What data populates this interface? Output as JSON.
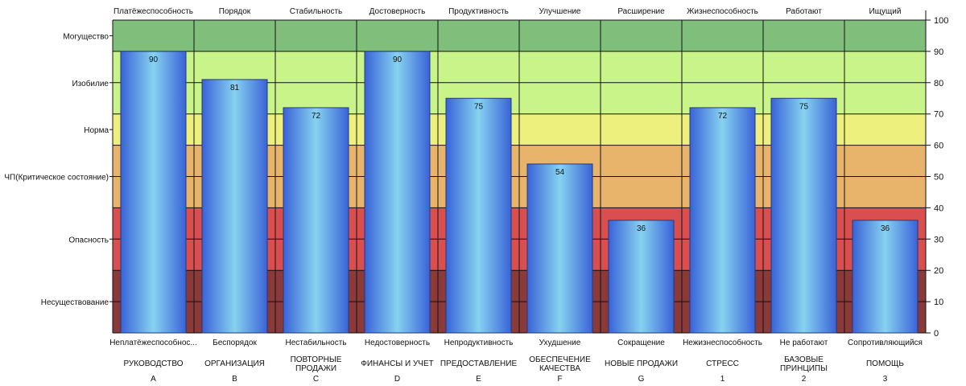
{
  "chart_data": {
    "type": "bar",
    "categories": [
      {
        "top": "Платёжеспособность",
        "bottom": "Неплатёжеспособнос...",
        "dept": "РУКОВОДСТВО",
        "code": "A"
      },
      {
        "top": "Порядок",
        "bottom": "Беспорядок",
        "dept": "ОРГАНИЗАЦИЯ",
        "code": "B"
      },
      {
        "top": "Стабильность",
        "bottom": "Нестабильность",
        "dept": "ПОВТОРНЫЕ ПРОДАЖИ",
        "code": "C"
      },
      {
        "top": "Достоверность",
        "bottom": "Недостоверность",
        "dept": "ФИНАНСЫ И УЧЕТ",
        "code": "D"
      },
      {
        "top": "Продуктивность",
        "bottom": "Непродуктивность",
        "dept": "ПРЕДОСТАВЛЕНИЕ",
        "code": "E"
      },
      {
        "top": "Улучшение",
        "bottom": "Ухудшение",
        "dept": "ОБЕСПЕЧЕНИЕ КАЧЕСТВА",
        "code": "F"
      },
      {
        "top": "Расширение",
        "bottom": "Сокращение",
        "dept": "НОВЫЕ ПРОДАЖИ",
        "code": "G"
      },
      {
        "top": "Жизнеспособность",
        "bottom": "Нежизнеспособность",
        "dept": "СТРЕСС",
        "code": "1"
      },
      {
        "top": "Работают",
        "bottom": "Не работают",
        "dept": "БАЗОВЫЕ ПРИНЦИПЫ",
        "code": "2"
      },
      {
        "top": "Ищущий",
        "bottom": "Сопротивляющийся",
        "dept": "ПОМОЩЬ",
        "code": "3"
      }
    ],
    "values": [
      90,
      81,
      72,
      90,
      75,
      54,
      36,
      72,
      75,
      36
    ],
    "ylim": [
      0,
      100
    ],
    "yticks": [
      0,
      10,
      20,
      30,
      40,
      50,
      60,
      70,
      80,
      90,
      100
    ],
    "grid": true,
    "zones": [
      {
        "label": "Несуществование",
        "from": 0,
        "to": 20,
        "color": "#8b3a3a"
      },
      {
        "label": "Опасность",
        "from": 20,
        "to": 40,
        "color": "#d94f4f"
      },
      {
        "label": "ЧП(Критическое состояние)",
        "from": 40,
        "to": 60,
        "color": "#e8b36a"
      },
      {
        "label": "Норма",
        "from": 60,
        "to": 70,
        "color": "#eef07e"
      },
      {
        "label": "Изобилие",
        "from": 70,
        "to": 90,
        "color": "#c9f48a"
      },
      {
        "label": "Могущество",
        "from": 90,
        "to": 100,
        "color": "#7fbf7b"
      }
    ],
    "bar_colors": {
      "edge": "#3a63d8",
      "center": "#86d2ef",
      "outline": "#223a7a"
    }
  }
}
